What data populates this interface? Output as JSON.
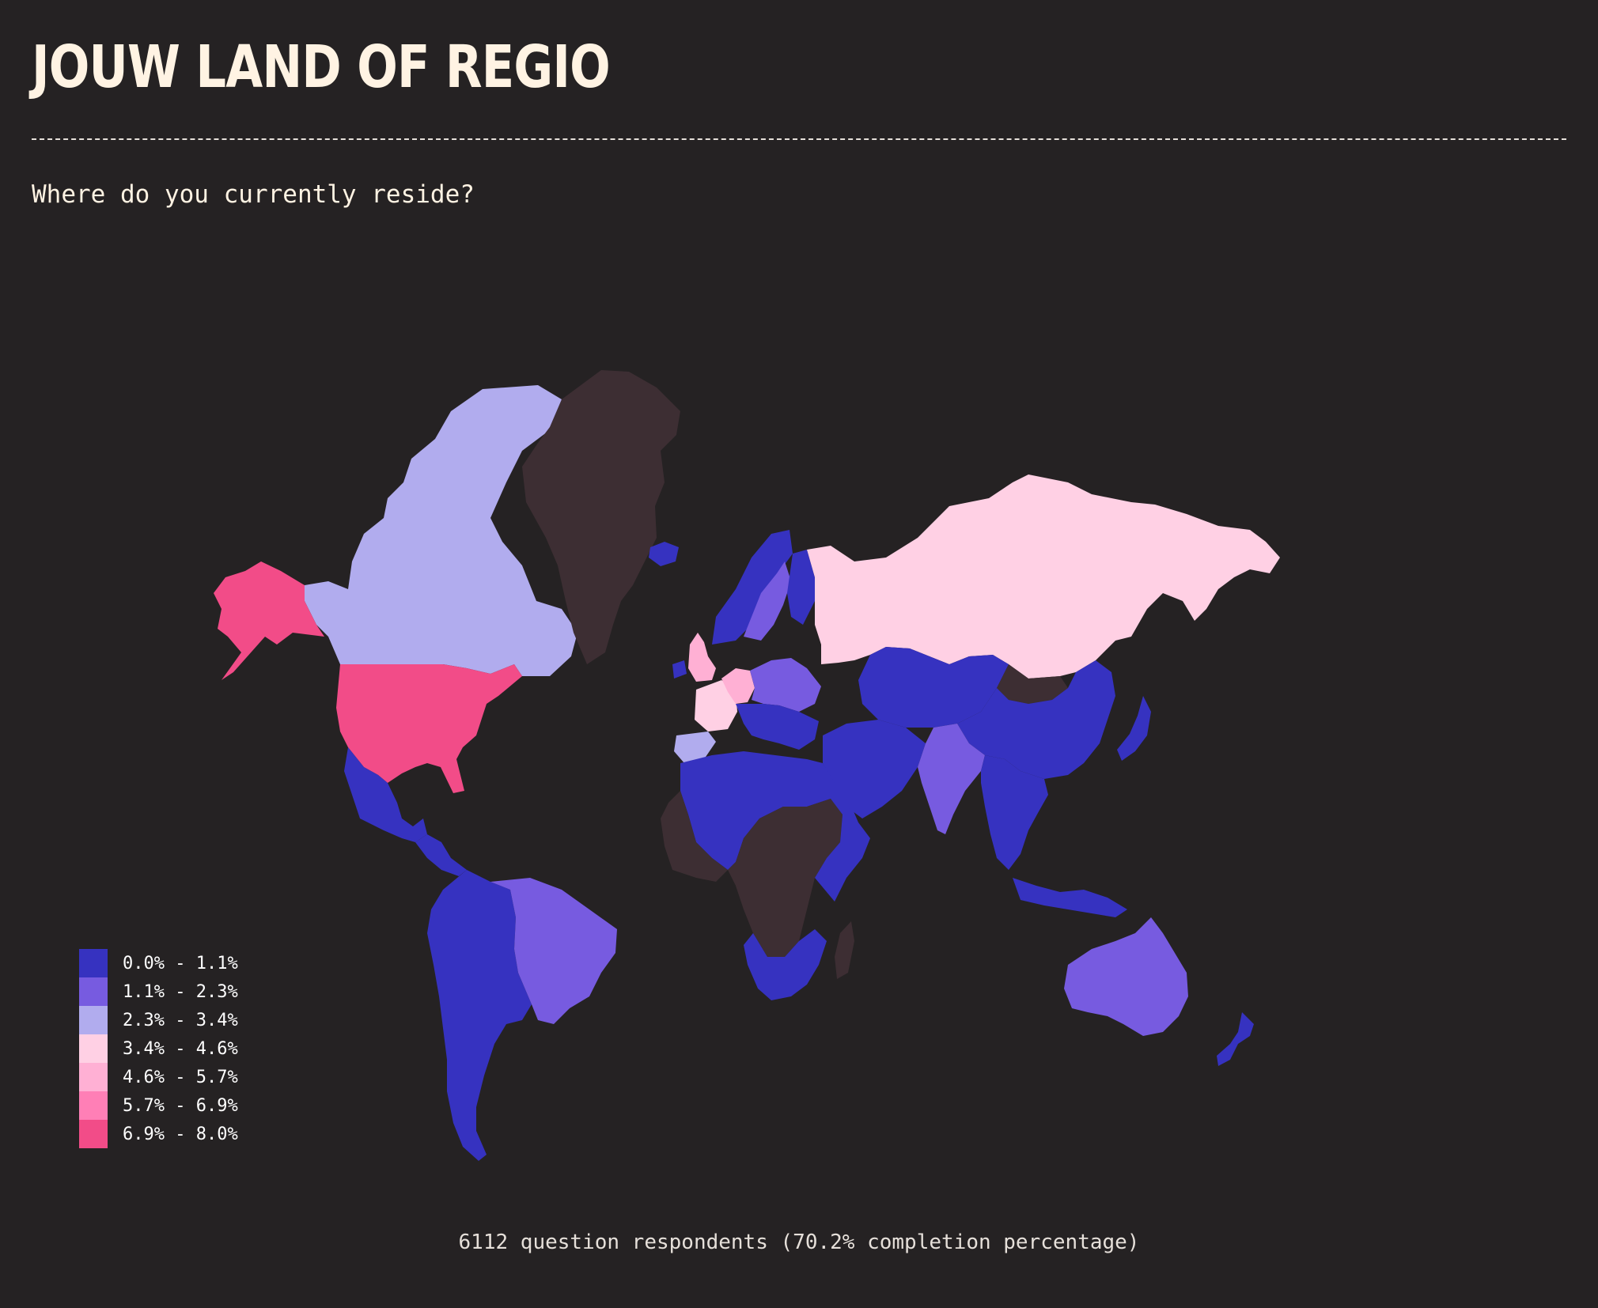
{
  "header": {
    "title": "JOUW LAND OF REGIO",
    "question": "Where do you currently reside?"
  },
  "legend": [
    {
      "label": "0.0% - 1.1%",
      "color": "#3632c0"
    },
    {
      "label": "1.1% - 2.3%",
      "color": "#775be0"
    },
    {
      "label": "2.3% - 3.4%",
      "color": "#b1acee"
    },
    {
      "label": "3.4% - 4.6%",
      "color": "#ffd0e4"
    },
    {
      "label": "4.6% - 5.7%",
      "color": "#ffb0d4"
    },
    {
      "label": "5.7% - 6.9%",
      "color": "#ff7fb6"
    },
    {
      "label": "6.9% - 8.0%",
      "color": "#f24c88"
    }
  ],
  "colors": {
    "background": "#252223",
    "no_data": "#3d2e33"
  },
  "regions": [
    {
      "id": "canada",
      "bin": 2
    },
    {
      "id": "united-states",
      "bin": 6
    },
    {
      "id": "alaska",
      "bin": 6
    },
    {
      "id": "mexico",
      "bin": 0
    },
    {
      "id": "central-america",
      "bin": 0
    },
    {
      "id": "greenland",
      "bin": -1
    },
    {
      "id": "brazil",
      "bin": 1
    },
    {
      "id": "south-america-west",
      "bin": 0
    },
    {
      "id": "iceland",
      "bin": 0
    },
    {
      "id": "norway",
      "bin": 0
    },
    {
      "id": "sweden",
      "bin": 1
    },
    {
      "id": "finland",
      "bin": 0
    },
    {
      "id": "united-kingdom",
      "bin": 4
    },
    {
      "id": "ireland",
      "bin": 0
    },
    {
      "id": "france",
      "bin": 3
    },
    {
      "id": "spain",
      "bin": 2
    },
    {
      "id": "germany",
      "bin": 4
    },
    {
      "id": "central-europe",
      "bin": 1
    },
    {
      "id": "southern-europe",
      "bin": 0
    },
    {
      "id": "russia",
      "bin": 3
    },
    {
      "id": "north-africa",
      "bin": 0
    },
    {
      "id": "west-africa",
      "bin": -1
    },
    {
      "id": "central-africa",
      "bin": -1
    },
    {
      "id": "east-africa",
      "bin": 0
    },
    {
      "id": "southern-africa",
      "bin": 0
    },
    {
      "id": "madagascar",
      "bin": -1
    },
    {
      "id": "middle-east",
      "bin": 0
    },
    {
      "id": "central-asia",
      "bin": 0
    },
    {
      "id": "mongolia",
      "bin": -1
    },
    {
      "id": "china",
      "bin": 0
    },
    {
      "id": "india",
      "bin": 1
    },
    {
      "id": "southeast-asia",
      "bin": 0
    },
    {
      "id": "japan",
      "bin": 0
    },
    {
      "id": "indonesia",
      "bin": 0
    },
    {
      "id": "australia",
      "bin": 1
    },
    {
      "id": "new-zealand",
      "bin": 0
    }
  ],
  "footer": {
    "respondents": "6112 question respondents (70.2% completion percentage)"
  }
}
